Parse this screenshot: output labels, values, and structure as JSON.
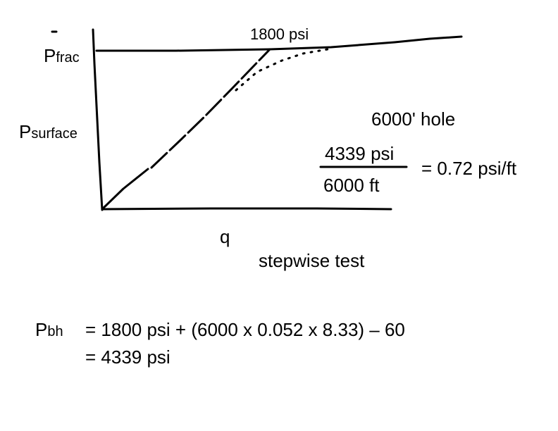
{
  "labels": {
    "p_frac": {
      "symbol": "P",
      "subscript": "frac"
    },
    "p_surface": {
      "symbol": "P",
      "subscript": "surface"
    },
    "peak": "1800 psi",
    "q": "q",
    "hole": "6000' hole",
    "fraction": {
      "numerator": "4339 psi",
      "denominator": "6000 ft",
      "result": "= 0.72 psi/ft"
    },
    "test": "stepwise test"
  },
  "equation": {
    "symbol": "P",
    "subscript": "bh",
    "line1": "= 1800 psi + (6000 x 0.052 x 8.33) – 60",
    "line2": "= 4339 psi"
  }
}
